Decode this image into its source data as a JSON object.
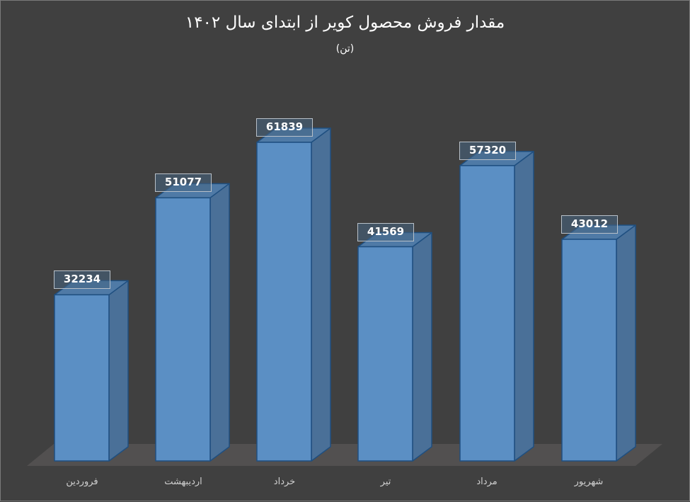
{
  "chart_data": {
    "type": "bar",
    "title": "مقدار فروش محصول کویر از ابتدای سال ۱۴۰۲",
    "subtitle": "(تن)",
    "categories": [
      "فروردین",
      "اردیبهشت",
      "خرداد",
      "تیر",
      "مرداد",
      "شهریور"
    ],
    "values": [
      32234,
      51077,
      61839,
      41569,
      57320,
      43012
    ],
    "value_labels": [
      "32234",
      "51077",
      "61839",
      "41569",
      "57320",
      "43012"
    ],
    "xlabel": "",
    "ylabel": "",
    "ylim": [
      0,
      70000
    ],
    "grid": false,
    "legend": false,
    "style": "3d-column",
    "colors": {
      "background": "#404040",
      "bar_front": "#5b8fc4",
      "bar_side": "#4a7098",
      "bar_top": "#4f7aa6",
      "bar_edge": "#1f4f80",
      "floor": "#525050",
      "text": "#ffffff",
      "axis_label": "#d0d0d0"
    }
  }
}
